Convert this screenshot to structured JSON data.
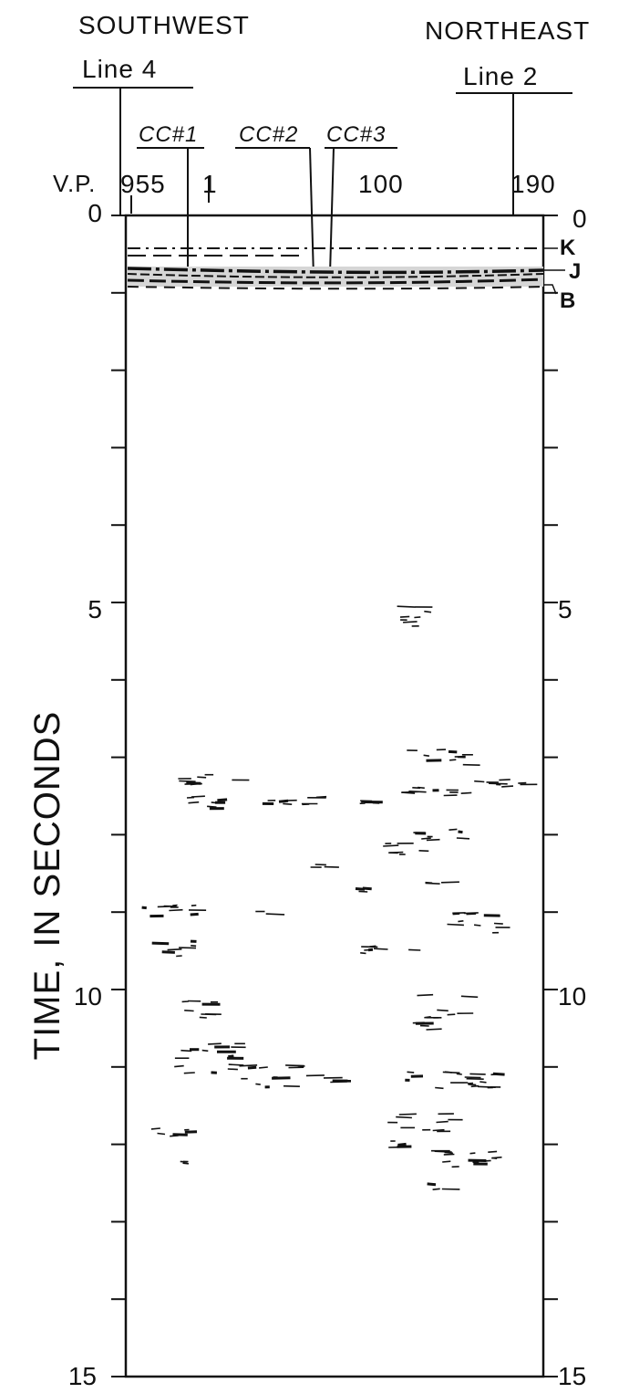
{
  "header": {
    "left_direction": "SOUTHWEST",
    "right_direction": "NORTHEAST",
    "left_line": "Line 4",
    "right_line": "Line 2",
    "wells": [
      "CC#1",
      "CC#2",
      "CC#3"
    ],
    "vp_prefix": "V.P.",
    "vp_labels": [
      "955",
      "1",
      "100",
      "190"
    ]
  },
  "axis": {
    "label": "TIME, IN SECONDS",
    "left_ticks": [
      "0",
      "5",
      "10",
      "15"
    ],
    "right_ticks": [
      "0",
      "5",
      "10",
      "15"
    ],
    "range": [
      0,
      15
    ]
  },
  "horizons": [
    "K",
    "J",
    "B"
  ]
}
